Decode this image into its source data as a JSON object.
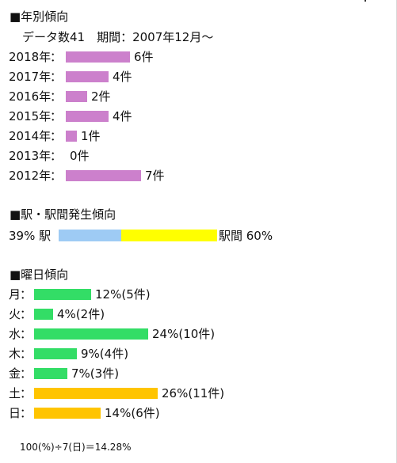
{
  "sections": {
    "yearly_title": "■年別傾向",
    "yearly_sub": "データ数41　期間：2007年12月～",
    "station_title": "■駅・駅間発生傾向",
    "weekday_title": "■曜日傾向"
  },
  "colors": {
    "year": "#cc80cc",
    "station": "#9ecbf4",
    "between": "#ffff00",
    "weekday": "#33dd66",
    "weekend": "#ffc400"
  },
  "chart_data": [
    {
      "type": "bar",
      "orientation": "horizontal",
      "categories": [
        "2018年",
        "2017年",
        "2016年",
        "2015年",
        "2014年",
        "2013年",
        "2012年"
      ],
      "values": [
        6,
        4,
        2,
        4,
        1,
        0,
        7
      ],
      "labels": [
        "6件",
        "4件",
        "2件",
        "4件",
        "1件",
        "0件",
        "7件"
      ],
      "title": "■年別傾向"
    },
    {
      "type": "bar",
      "orientation": "horizontal",
      "stacked": true,
      "categories": [
        "駅",
        "駅間"
      ],
      "values": [
        39,
        60
      ],
      "left_label": "39% 駅",
      "right_label": "駅間 60%",
      "title": "■駅・駅間発生傾向"
    },
    {
      "type": "bar",
      "orientation": "horizontal",
      "categories": [
        "月",
        "火",
        "水",
        "木",
        "金",
        "土",
        "日"
      ],
      "values": [
        12,
        4,
        24,
        9,
        7,
        26,
        14
      ],
      "labels": [
        "12%(5件)",
        "4%(2件)",
        "24%(10件)",
        "9%(4件)",
        "7%(3件)",
        "26%(11件)",
        "14%(6件)"
      ],
      "weekend": [
        false,
        false,
        false,
        false,
        false,
        true,
        true
      ],
      "title": "■曜日傾向"
    }
  ],
  "footnote": "100(%)÷7(日)＝14.28%"
}
